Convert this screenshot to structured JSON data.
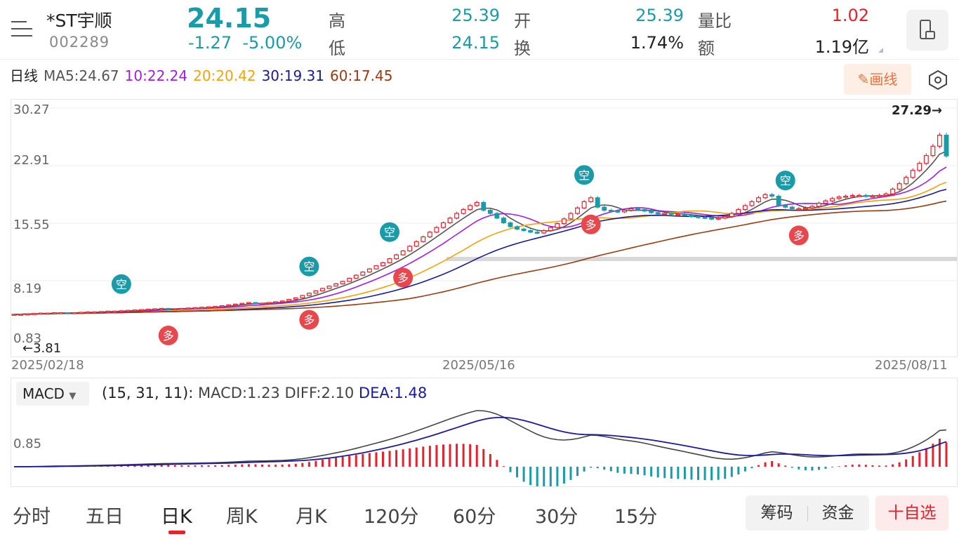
{
  "header": {
    "name": "*ST宇顺",
    "code": "002289",
    "price": "24.15",
    "change": "-1.27",
    "change_pct": "-5.00%",
    "high_label": "高",
    "high": "25.39",
    "low_label": "低",
    "low": "24.15",
    "open_label": "开",
    "open": "25.39",
    "turnover_label": "换",
    "turnover": "1.74%",
    "vol_ratio_label": "量比",
    "vol_ratio": "1.02",
    "amount_label": "额",
    "amount": "1.19亿"
  },
  "ma_legend": {
    "period": "日线",
    "ma5": "MA5:24.67",
    "ma10": "10:22.24",
    "ma20": "20:20.42",
    "ma30": "30:19.31",
    "ma60": "60:17.45"
  },
  "toolbar": {
    "draw_label": "画线"
  },
  "colors": {
    "up": "#e6212a",
    "down": "#1a9ba8",
    "ma5": "#555555",
    "ma10": "#a01fe0",
    "ma20": "#f2a20c",
    "ma30": "#1a1a9a",
    "ma60": "#9a3a10",
    "dea": "#1a1aa0",
    "diff": "#444444"
  },
  "chart_data": [
    {
      "type": "candlestick",
      "y_ticks": [
        "30.27",
        "22.91",
        "15.55",
        "8.19",
        "0.83"
      ],
      "ylim": [
        0.83,
        30.27
      ],
      "x_ticks": [
        "2025/02/18",
        "2025/05/16",
        "2025/08/11"
      ],
      "max_label": "27.29→",
      "min_label": "←3.81",
      "signals_short_label": "空",
      "signals_long_label": "多",
      "price_path": [
        3.9,
        3.9,
        3.95,
        4,
        4.05,
        4.05,
        4.1,
        4.1,
        4.05,
        4.1,
        4.15,
        4.2,
        4.2,
        4.25,
        4.3,
        4.3,
        4.35,
        4.4,
        4.45,
        4.5,
        4.55,
        4.6,
        4.65,
        4.6,
        4.6,
        4.65,
        4.7,
        4.75,
        4.8,
        4.85,
        4.9,
        5,
        5.1,
        5.2,
        5.3,
        5.4,
        5.3,
        5.3,
        5.4,
        5.5,
        5.6,
        5.8,
        6,
        6.3,
        6.6,
        6.9,
        7.2,
        7.5,
        7.8,
        8.1,
        8.5,
        8.9,
        9.3,
        9.7,
        10.1,
        10.5,
        11,
        11.5,
        12,
        12.6,
        13.2,
        13.8,
        14.4,
        15,
        15.6,
        16.2,
        16.8,
        17.3,
        17.8,
        18.2,
        17.2,
        16.8,
        16.2,
        15.6,
        15.1,
        14.8,
        14.6,
        14.4,
        14.3,
        14.6,
        15,
        15.5,
        16.1,
        16.8,
        17.5,
        18.3,
        18.8,
        17.6,
        17.2,
        17.1,
        17.0,
        17.2,
        17.4,
        17.3,
        17.1,
        16.9,
        16.8,
        16.8,
        16.7,
        16.7,
        16.6,
        16.4,
        16.3,
        16.2,
        16.1,
        16.2,
        16.4,
        16.8,
        17.3,
        17.8,
        18.3,
        18.8,
        19.2,
        19.0,
        17.8,
        17.6,
        17.4,
        17.4,
        17.5,
        17.7,
        18.1,
        18.4,
        18.7,
        18.9,
        19.0,
        19.1,
        19.1,
        19.0,
        19.0,
        19.1,
        19.3,
        19.9,
        20.6,
        21.4,
        22.3,
        23.2,
        24.2,
        25.4,
        26.8,
        24.15
      ]
    },
    {
      "type": "bar+line",
      "name": "MACD",
      "params": "(15, 31, 11):",
      "macd": "MACD:1.23",
      "diff": "DIFF:2.10",
      "dea": "DEA:1.48",
      "y_ticks": [
        "0.85"
      ]
    }
  ],
  "tabs": [
    "分时",
    "五日",
    "日K",
    "周K",
    "月K",
    "120分",
    "60分",
    "30分",
    "15分"
  ],
  "active_tab": "日K",
  "bottom_buttons": {
    "chips": "筹码",
    "funds": "资金",
    "add_watch": "十自选"
  }
}
